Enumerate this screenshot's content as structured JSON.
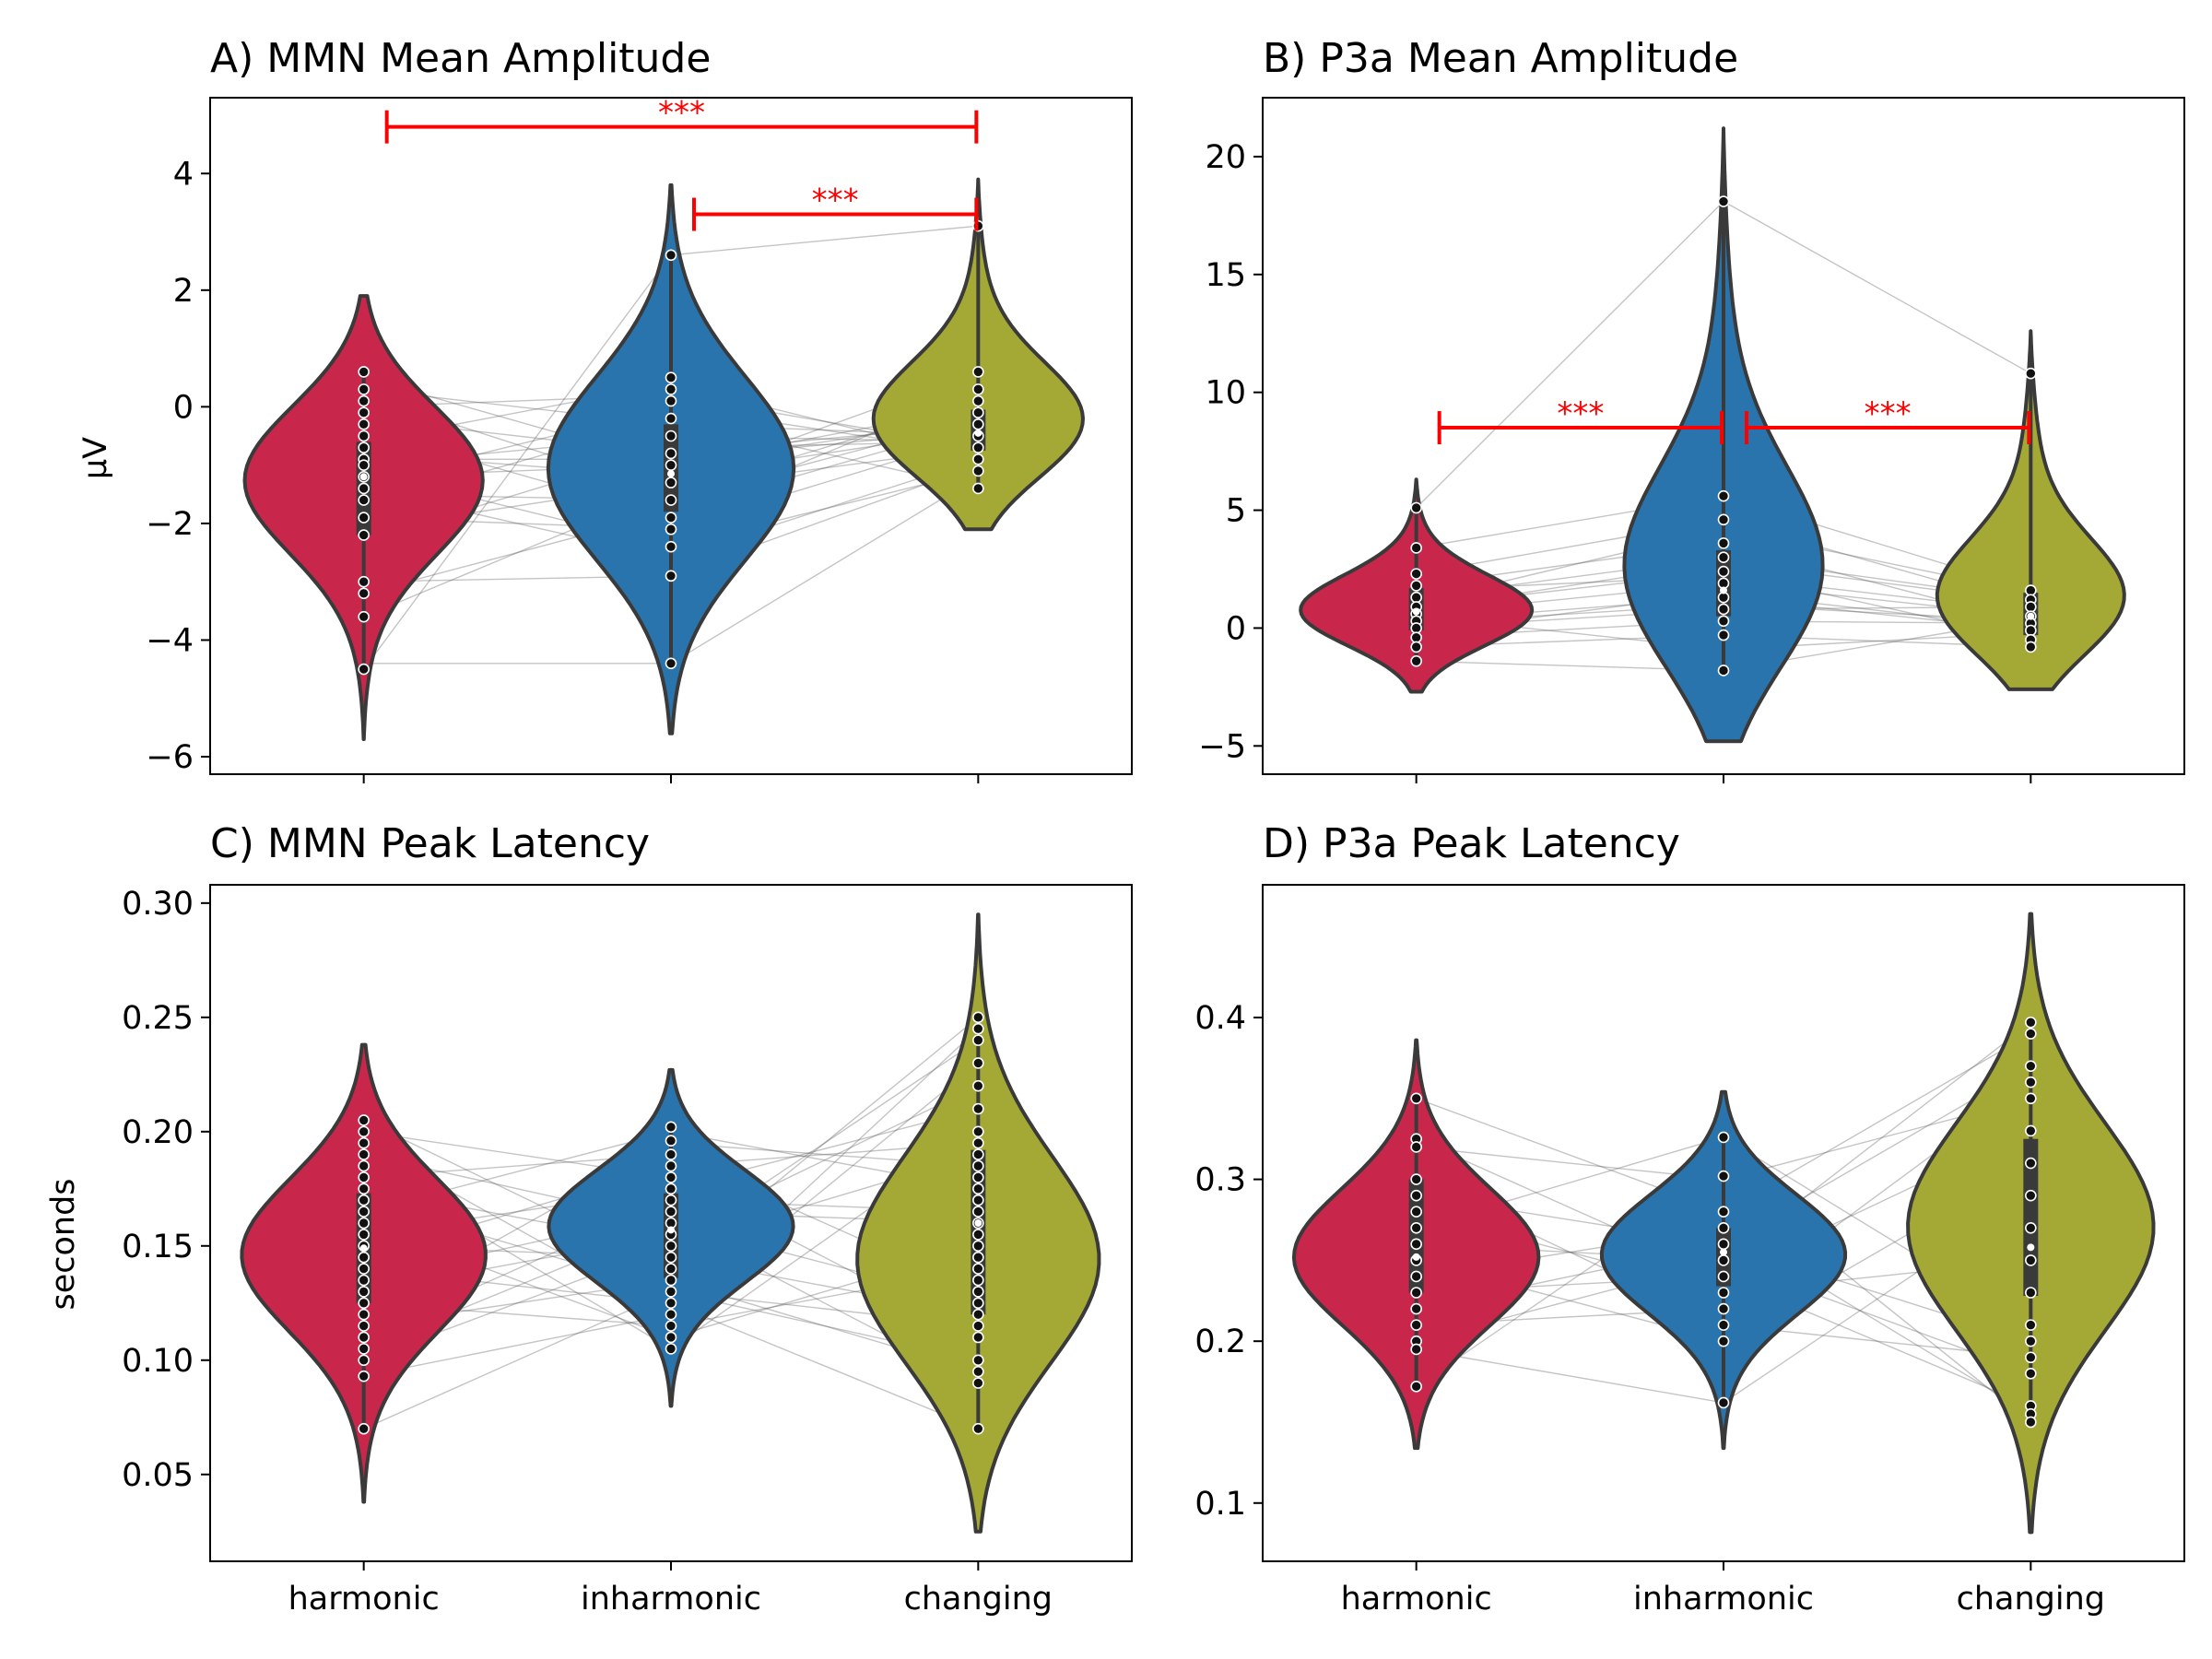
{
  "figure": {
    "categories": [
      "harmonic",
      "inharmonic",
      "changing"
    ]
  },
  "colors": {
    "harmonic": "#c8274b",
    "inharmonic": "#2a74ad",
    "changing": "#a4a935",
    "outline": "#3a3a3a",
    "significance": "#ff0000"
  },
  "chart_data": [
    {
      "type": "violin",
      "title": "A) MMN Mean Amplitude",
      "ylabel": "μV",
      "ylim": [
        -6.3,
        5.3
      ],
      "yticks": [
        -6,
        -4,
        -2,
        0,
        2,
        4
      ],
      "categories": [
        "harmonic",
        "inharmonic",
        "changing"
      ],
      "show_xticklabels": false,
      "violins": [
        {
          "name": "harmonic",
          "min": -5.7,
          "max": 1.9,
          "q1": -2.2,
          "median": -1.2,
          "q3": -0.6,
          "mode": -1.1,
          "points": [
            0.6,
            0.3,
            0.1,
            -0.1,
            -0.3,
            -0.5,
            -0.7,
            -0.9,
            -1.0,
            -1.2,
            -1.4,
            -1.6,
            -1.9,
            -2.2,
            -3.0,
            -3.2,
            -3.6,
            -4.5
          ]
        },
        {
          "name": "inharmonic",
          "min": -5.6,
          "max": 3.8,
          "q1": -1.8,
          "median": -1.15,
          "q3": -0.3,
          "mode": -1.1,
          "points": [
            2.6,
            0.5,
            0.3,
            0.1,
            -0.2,
            -0.5,
            -0.8,
            -1.0,
            -1.3,
            -1.6,
            -1.9,
            -2.1,
            -2.4,
            -2.9,
            -4.4
          ]
        },
        {
          "name": "changing",
          "min": -2.1,
          "max": 3.9,
          "q1": -0.75,
          "median": -0.45,
          "q3": -0.05,
          "mode": -0.5,
          "points": [
            3.1,
            0.6,
            0.3,
            0.1,
            -0.1,
            -0.3,
            -0.5,
            -0.7,
            -0.9,
            -1.1,
            -1.4
          ]
        }
      ],
      "pairs": [
        [
          0.5,
          -1.0,
          -0.2
        ],
        [
          0.3,
          -0.3,
          -0.5
        ],
        [
          0.2,
          -1.5,
          0.1
        ],
        [
          0.0,
          0.2,
          -0.7
        ],
        [
          -0.2,
          -0.8,
          -0.3
        ],
        [
          -0.4,
          -1.9,
          0.3
        ],
        [
          -0.6,
          0.4,
          -0.9
        ],
        [
          -0.8,
          -1.2,
          -0.4
        ],
        [
          -1.0,
          -0.5,
          -0.6
        ],
        [
          -1.1,
          -2.4,
          -1.1
        ],
        [
          -1.2,
          -1.0,
          0.0
        ],
        [
          -1.3,
          0.0,
          -0.8
        ],
        [
          -1.5,
          -1.6,
          -0.2
        ],
        [
          -1.7,
          -0.2,
          -1.4
        ],
        [
          -1.9,
          -2.1,
          -0.5
        ],
        [
          -2.1,
          -1.3,
          0.6
        ],
        [
          -2.3,
          -0.7,
          -0.6
        ],
        [
          -3.0,
          -2.9,
          -1.0
        ],
        [
          -3.2,
          -1.8,
          -0.3
        ],
        [
          -3.6,
          -1.4,
          -0.7
        ],
        [
          -4.5,
          2.6,
          3.1
        ],
        [
          -4.4,
          -4.4,
          -1.2
        ],
        [
          -0.9,
          -0.9,
          -0.4
        ],
        [
          -1.4,
          -2.6,
          -0.9
        ]
      ],
      "significance": [
        {
          "from": "harmonic",
          "to": "changing",
          "y": 4.8,
          "label": "***"
        },
        {
          "from": "inharmonic",
          "to": "changing",
          "y": 3.3,
          "label": "***"
        }
      ]
    },
    {
      "type": "violin",
      "title": "B) P3a Mean Amplitude",
      "ylabel": "",
      "ylim": [
        -6.2,
        22.5
      ],
      "yticks": [
        -5,
        0,
        5,
        10,
        15,
        20
      ],
      "categories": [
        "harmonic",
        "inharmonic",
        "changing"
      ],
      "show_xticklabels": false,
      "violins": [
        {
          "name": "harmonic",
          "min": -2.7,
          "max": 6.3,
          "q1": -0.1,
          "median": 0.7,
          "q3": 1.7,
          "mode": 0.5,
          "points": [
            5.1,
            3.4,
            2.3,
            1.8,
            1.3,
            0.9,
            0.6,
            0.3,
            0.0,
            -0.4,
            -0.8,
            -1.4
          ]
        },
        {
          "name": "inharmonic",
          "min": -4.8,
          "max": 21.2,
          "q1": 0.5,
          "median": 1.6,
          "q3": 3.3,
          "mode": 1.2,
          "points": [
            18.1,
            5.6,
            4.6,
            3.6,
            3.0,
            2.4,
            1.9,
            1.3,
            0.8,
            0.3,
            -0.3,
            -1.8
          ]
        },
        {
          "name": "changing",
          "min": -2.6,
          "max": 12.6,
          "q1": -0.3,
          "median": 0.5,
          "q3": 1.5,
          "mode": 0.4,
          "points": [
            10.8,
            1.6,
            1.2,
            0.9,
            0.5,
            0.2,
            -0.1,
            -0.5,
            -0.8
          ]
        }
      ],
      "pairs": [
        [
          5.1,
          18.1,
          10.8
        ],
        [
          3.4,
          5.6,
          1.6
        ],
        [
          2.3,
          4.6,
          0.9
        ],
        [
          1.8,
          3.6,
          0.2
        ],
        [
          1.3,
          3.0,
          1.2
        ],
        [
          0.9,
          2.4,
          -0.5
        ],
        [
          0.6,
          1.9,
          0.5
        ],
        [
          0.3,
          1.3,
          -0.1
        ],
        [
          0.0,
          0.8,
          0.9
        ],
        [
          -0.4,
          0.3,
          0.2
        ],
        [
          -0.8,
          -0.3,
          -0.8
        ],
        [
          -1.4,
          -1.8,
          0.4
        ],
        [
          0.8,
          2.8,
          1.1
        ],
        [
          0.2,
          1.0,
          0.3
        ],
        [
          1.1,
          4.2,
          1.5
        ],
        [
          0.5,
          -0.9,
          -0.2
        ],
        [
          1.6,
          2.2,
          0.7
        ],
        [
          -0.2,
          1.5,
          0.0
        ]
      ],
      "significance": [
        {
          "from": "harmonic",
          "to": "inharmonic",
          "y": 8.5,
          "label": "***"
        },
        {
          "from": "inharmonic",
          "to": "changing",
          "y": 8.5,
          "label": "***"
        }
      ]
    },
    {
      "type": "violin",
      "title": "C) MMN Peak Latency",
      "ylabel": "seconds",
      "ylim": [
        0.012,
        0.308
      ],
      "yticks": [
        0.05,
        0.1,
        0.15,
        0.2,
        0.25,
        0.3
      ],
      "ytick_labels": [
        "0.05",
        "0.10",
        "0.15",
        "0.20",
        "0.25",
        "0.30"
      ],
      "categories": [
        "harmonic",
        "inharmonic",
        "changing"
      ],
      "show_xticklabels": true,
      "violins": [
        {
          "name": "harmonic",
          "min": 0.038,
          "max": 0.238,
          "q1": 0.125,
          "median": 0.149,
          "q3": 0.173,
          "mode": 0.148,
          "points": [
            0.205,
            0.2,
            0.195,
            0.19,
            0.185,
            0.18,
            0.175,
            0.17,
            0.165,
            0.16,
            0.155,
            0.15,
            0.145,
            0.14,
            0.135,
            0.13,
            0.125,
            0.12,
            0.115,
            0.11,
            0.105,
            0.1,
            0.093,
            0.07
          ]
        },
        {
          "name": "inharmonic",
          "min": 0.08,
          "max": 0.227,
          "q1": 0.136,
          "median": 0.157,
          "q3": 0.173,
          "mode": 0.16,
          "points": [
            0.202,
            0.196,
            0.19,
            0.185,
            0.18,
            0.175,
            0.17,
            0.165,
            0.16,
            0.155,
            0.15,
            0.145,
            0.14,
            0.135,
            0.13,
            0.125,
            0.12,
            0.115,
            0.11,
            0.105
          ]
        },
        {
          "name": "changing",
          "min": 0.025,
          "max": 0.295,
          "q1": 0.12,
          "median": 0.16,
          "q3": 0.192,
          "mode": 0.14,
          "points": [
            0.25,
            0.245,
            0.24,
            0.23,
            0.22,
            0.21,
            0.2,
            0.195,
            0.19,
            0.185,
            0.18,
            0.175,
            0.17,
            0.165,
            0.16,
            0.155,
            0.15,
            0.145,
            0.14,
            0.135,
            0.13,
            0.125,
            0.12,
            0.115,
            0.11,
            0.1,
            0.095,
            0.09,
            0.07
          ]
        }
      ],
      "pairs": [
        [
          0.205,
          0.14,
          0.25
        ],
        [
          0.2,
          0.18,
          0.11
        ],
        [
          0.195,
          0.12,
          0.23
        ],
        [
          0.19,
          0.16,
          0.09
        ],
        [
          0.185,
          0.105,
          0.2
        ],
        [
          0.18,
          0.19,
          0.13
        ],
        [
          0.175,
          0.15,
          0.24
        ],
        [
          0.17,
          0.13,
          0.1
        ],
        [
          0.165,
          0.2,
          0.175
        ],
        [
          0.16,
          0.11,
          0.15
        ],
        [
          0.155,
          0.175,
          0.21
        ],
        [
          0.15,
          0.145,
          0.12
        ],
        [
          0.145,
          0.185,
          0.195
        ],
        [
          0.14,
          0.125,
          0.07
        ],
        [
          0.135,
          0.165,
          0.16
        ],
        [
          0.13,
          0.155,
          0.22
        ],
        [
          0.125,
          0.115,
          0.14
        ],
        [
          0.12,
          0.195,
          0.185
        ],
        [
          0.115,
          0.135,
          0.095
        ],
        [
          0.11,
          0.17,
          0.165
        ],
        [
          0.105,
          0.16,
          0.125
        ],
        [
          0.1,
          0.15,
          0.19
        ],
        [
          0.093,
          0.12,
          0.245
        ],
        [
          0.07,
          0.13,
          0.115
        ]
      ],
      "significance": []
    },
    {
      "type": "violin",
      "title": "D) P3a Peak Latency",
      "ylabel": "",
      "ylim": [
        0.064,
        0.482
      ],
      "yticks": [
        0.1,
        0.2,
        0.3,
        0.4
      ],
      "categories": [
        "harmonic",
        "inharmonic",
        "changing"
      ],
      "show_xticklabels": true,
      "violins": [
        {
          "name": "harmonic",
          "min": 0.134,
          "max": 0.386,
          "q1": 0.23,
          "median": 0.252,
          "q3": 0.3,
          "mode": 0.25,
          "points": [
            0.35,
            0.325,
            0.32,
            0.3,
            0.29,
            0.28,
            0.27,
            0.26,
            0.25,
            0.24,
            0.23,
            0.22,
            0.21,
            0.2,
            0.195,
            0.172
          ]
        },
        {
          "name": "inharmonic",
          "min": 0.134,
          "max": 0.354,
          "q1": 0.234,
          "median": 0.255,
          "q3": 0.27,
          "mode": 0.256,
          "points": [
            0.326,
            0.302,
            0.28,
            0.27,
            0.26,
            0.25,
            0.24,
            0.23,
            0.22,
            0.21,
            0.2,
            0.162
          ]
        },
        {
          "name": "changing",
          "min": 0.082,
          "max": 0.464,
          "q1": 0.228,
          "median": 0.258,
          "q3": 0.325,
          "mode": 0.27,
          "points": [
            0.397,
            0.39,
            0.37,
            0.36,
            0.35,
            0.33,
            0.31,
            0.29,
            0.27,
            0.25,
            0.23,
            0.21,
            0.2,
            0.19,
            0.18,
            0.16,
            0.155,
            0.15
          ]
        }
      ],
      "pairs": [
        [
          0.35,
          0.28,
          0.39
        ],
        [
          0.325,
          0.24,
          0.16
        ],
        [
          0.32,
          0.3,
          0.35
        ],
        [
          0.3,
          0.21,
          0.19
        ],
        [
          0.29,
          0.26,
          0.37
        ],
        [
          0.28,
          0.23,
          0.25
        ],
        [
          0.27,
          0.326,
          0.21
        ],
        [
          0.26,
          0.25,
          0.397
        ],
        [
          0.25,
          0.2,
          0.31
        ],
        [
          0.24,
          0.27,
          0.155
        ],
        [
          0.23,
          0.24,
          0.33
        ],
        [
          0.22,
          0.26,
          0.2
        ],
        [
          0.21,
          0.22,
          0.36
        ],
        [
          0.2,
          0.25,
          0.18
        ],
        [
          0.195,
          0.162,
          0.29
        ],
        [
          0.172,
          0.302,
          0.15
        ]
      ],
      "significance": []
    }
  ]
}
